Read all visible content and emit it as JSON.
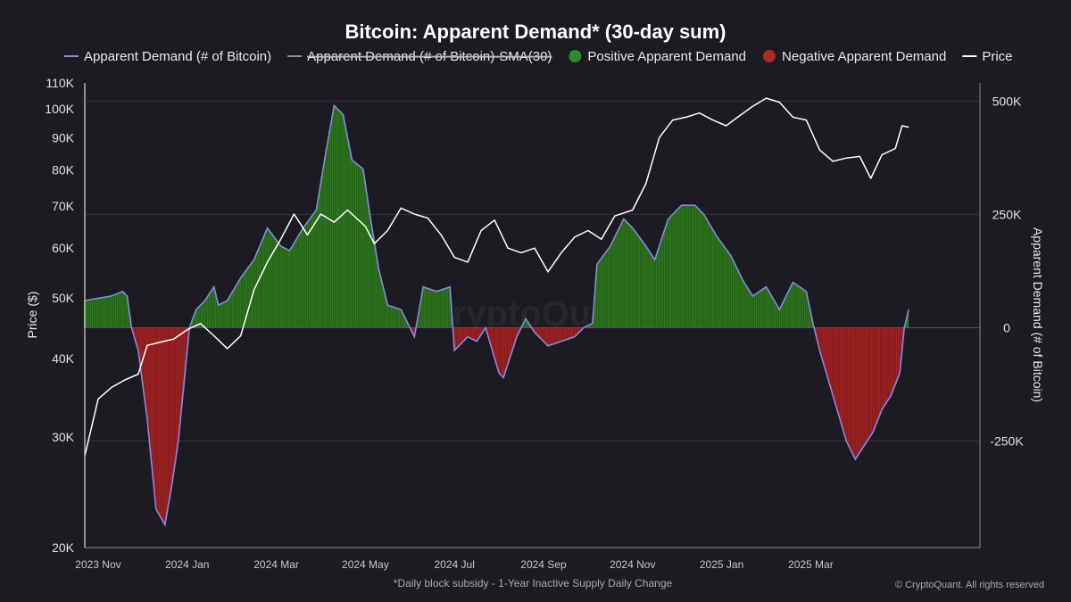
{
  "chart_data": {
    "type": "line",
    "title": "Bitcoin: Apparent Demand* (30-day sum)",
    "legend": [
      {
        "label": "Apparent Demand (# of Bitcoin)",
        "color": "#8b85e6",
        "style": "line"
      },
      {
        "label": "Apparent Demand (# of Bitcoin)-SMA(30)",
        "color": "#8a8a92",
        "style": "line-hidden"
      },
      {
        "label": "Positive Apparent Demand",
        "color": "#2e8b2e",
        "style": "dot"
      },
      {
        "label": "Negative Apparent Demand",
        "color": "#b02a2a",
        "style": "dot"
      },
      {
        "label": "Price",
        "color": "#ffffff",
        "style": "line"
      }
    ],
    "left_axis": {
      "title": "Price ($)",
      "scale": "log",
      "range": [
        20000,
        110000
      ],
      "ticks": [
        {
          "value": 20000,
          "label": "20K"
        },
        {
          "value": 30000,
          "label": "30K"
        },
        {
          "value": 40000,
          "label": "40K"
        },
        {
          "value": 50000,
          "label": "50K"
        },
        {
          "value": 60000,
          "label": "60K"
        },
        {
          "value": 70000,
          "label": "70K"
        },
        {
          "value": 80000,
          "label": "80K"
        },
        {
          "value": 90000,
          "label": "90K"
        },
        {
          "value": 100000,
          "label": "100K"
        },
        {
          "value": 110000,
          "label": "110K"
        }
      ]
    },
    "right_axis": {
      "title": "Apparent Demand (# of Bitcoin)",
      "scale": "linear",
      "range": [
        -485000,
        540000
      ],
      "ticks": [
        {
          "value": 500000,
          "label": "500K"
        },
        {
          "value": 250000,
          "label": "250K"
        },
        {
          "value": 0,
          "label": "0"
        },
        {
          "value": -250000,
          "label": "-250K"
        }
      ]
    },
    "x_axis": {
      "range_month_index": [
        -0.3,
        19.8
      ],
      "ticks": [
        {
          "t": 0,
          "label": "2023 Nov"
        },
        {
          "t": 2,
          "label": "2024 Jan"
        },
        {
          "t": 4,
          "label": "2024 Mar"
        },
        {
          "t": 6,
          "label": "2024 May"
        },
        {
          "t": 8,
          "label": "2024 Jul"
        },
        {
          "t": 10,
          "label": "2024 Sep"
        },
        {
          "t": 12,
          "label": "2024 Nov"
        },
        {
          "t": 14,
          "label": "2025 Jan"
        },
        {
          "t": 16,
          "label": "2025 Mar"
        }
      ]
    },
    "series": [
      {
        "name": "Apparent Demand (# of Bitcoin)",
        "axis": "right",
        "unit": "BTC",
        "points": [
          [
            -0.3,
            60000
          ],
          [
            0.0,
            65000
          ],
          [
            0.3,
            70000
          ],
          [
            0.55,
            80000
          ],
          [
            0.65,
            70000
          ],
          [
            0.75,
            0
          ],
          [
            0.9,
            -50000
          ],
          [
            1.1,
            -200000
          ],
          [
            1.3,
            -400000
          ],
          [
            1.5,
            -435000
          ],
          [
            1.65,
            -350000
          ],
          [
            1.8,
            -250000
          ],
          [
            2.0,
            -50000
          ],
          [
            2.05,
            0
          ],
          [
            2.2,
            40000
          ],
          [
            2.4,
            60000
          ],
          [
            2.6,
            90000
          ],
          [
            2.7,
            50000
          ],
          [
            2.9,
            60000
          ],
          [
            3.2,
            110000
          ],
          [
            3.5,
            150000
          ],
          [
            3.8,
            220000
          ],
          [
            4.1,
            180000
          ],
          [
            4.3,
            170000
          ],
          [
            4.6,
            220000
          ],
          [
            4.9,
            260000
          ],
          [
            5.1,
            380000
          ],
          [
            5.3,
            490000
          ],
          [
            5.5,
            470000
          ],
          [
            5.7,
            370000
          ],
          [
            5.95,
            350000
          ],
          [
            6.1,
            250000
          ],
          [
            6.3,
            130000
          ],
          [
            6.5,
            50000
          ],
          [
            6.8,
            40000
          ],
          [
            7.1,
            -20000
          ],
          [
            7.3,
            90000
          ],
          [
            7.6,
            80000
          ],
          [
            7.9,
            90000
          ],
          [
            8.0,
            -50000
          ],
          [
            8.3,
            -20000
          ],
          [
            8.5,
            -30000
          ],
          [
            8.7,
            0
          ],
          [
            9.0,
            -100000
          ],
          [
            9.1,
            -110000
          ],
          [
            9.4,
            -20000
          ],
          [
            9.6,
            20000
          ],
          [
            9.8,
            -10000
          ],
          [
            10.1,
            -40000
          ],
          [
            10.4,
            -30000
          ],
          [
            10.7,
            -20000
          ],
          [
            10.9,
            0
          ],
          [
            11.1,
            10000
          ],
          [
            11.2,
            140000
          ],
          [
            11.5,
            180000
          ],
          [
            11.8,
            240000
          ],
          [
            12.0,
            220000
          ],
          [
            12.3,
            180000
          ],
          [
            12.5,
            150000
          ],
          [
            12.8,
            240000
          ],
          [
            13.1,
            270000
          ],
          [
            13.4,
            270000
          ],
          [
            13.6,
            250000
          ],
          [
            13.9,
            200000
          ],
          [
            14.2,
            160000
          ],
          [
            14.5,
            100000
          ],
          [
            14.7,
            70000
          ],
          [
            15.0,
            90000
          ],
          [
            15.3,
            40000
          ],
          [
            15.6,
            100000
          ],
          [
            15.9,
            80000
          ],
          [
            16.05,
            10000
          ],
          [
            16.2,
            -50000
          ],
          [
            16.5,
            -150000
          ],
          [
            16.8,
            -250000
          ],
          [
            17.0,
            -290000
          ],
          [
            17.2,
            -260000
          ],
          [
            17.4,
            -230000
          ],
          [
            17.6,
            -180000
          ],
          [
            17.8,
            -150000
          ],
          [
            18.0,
            -100000
          ],
          [
            18.1,
            0
          ],
          [
            18.2,
            40000
          ]
        ]
      },
      {
        "name": "Price",
        "axis": "left",
        "unit": "USD",
        "points": [
          [
            -0.3,
            28000
          ],
          [
            0.0,
            34500
          ],
          [
            0.3,
            36000
          ],
          [
            0.6,
            37000
          ],
          [
            0.9,
            37800
          ],
          [
            1.1,
            42000
          ],
          [
            1.4,
            42500
          ],
          [
            1.7,
            43000
          ],
          [
            2.0,
            44500
          ],
          [
            2.3,
            45500
          ],
          [
            2.6,
            43500
          ],
          [
            2.9,
            41500
          ],
          [
            3.2,
            43500
          ],
          [
            3.5,
            51500
          ],
          [
            3.8,
            57000
          ],
          [
            4.1,
            62000
          ],
          [
            4.4,
            68000
          ],
          [
            4.7,
            63000
          ],
          [
            5.0,
            68000
          ],
          [
            5.3,
            66000
          ],
          [
            5.6,
            69000
          ],
          [
            6.0,
            65000
          ],
          [
            6.2,
            61000
          ],
          [
            6.5,
            64000
          ],
          [
            6.8,
            69500
          ],
          [
            7.1,
            68000
          ],
          [
            7.4,
            67000
          ],
          [
            7.7,
            63000
          ],
          [
            8.0,
            58000
          ],
          [
            8.3,
            57000
          ],
          [
            8.6,
            64000
          ],
          [
            8.9,
            66500
          ],
          [
            9.2,
            60000
          ],
          [
            9.5,
            59000
          ],
          [
            9.8,
            60000
          ],
          [
            10.1,
            55000
          ],
          [
            10.4,
            59000
          ],
          [
            10.7,
            62500
          ],
          [
            11.0,
            64000
          ],
          [
            11.3,
            62000
          ],
          [
            11.6,
            67500
          ],
          [
            12.0,
            69000
          ],
          [
            12.3,
            76000
          ],
          [
            12.6,
            90000
          ],
          [
            12.9,
            96000
          ],
          [
            13.2,
            97000
          ],
          [
            13.5,
            98500
          ],
          [
            13.8,
            96000
          ],
          [
            14.1,
            94000
          ],
          [
            14.4,
            97500
          ],
          [
            14.7,
            101000
          ],
          [
            15.0,
            104000
          ],
          [
            15.3,
            102500
          ],
          [
            15.6,
            97000
          ],
          [
            15.9,
            96000
          ],
          [
            16.2,
            86000
          ],
          [
            16.5,
            82500
          ],
          [
            16.8,
            83500
          ],
          [
            17.1,
            84000
          ],
          [
            17.35,
            77500
          ],
          [
            17.6,
            84500
          ],
          [
            17.9,
            86500
          ],
          [
            18.05,
            94000
          ],
          [
            18.2,
            93500
          ]
        ]
      }
    ]
  },
  "footnote": "*Daily block subsidy - 1-Year Inactive Supply Daily Change",
  "credit": "© CryptoQuant. All rights reserved",
  "watermark": "CryptoQuant"
}
